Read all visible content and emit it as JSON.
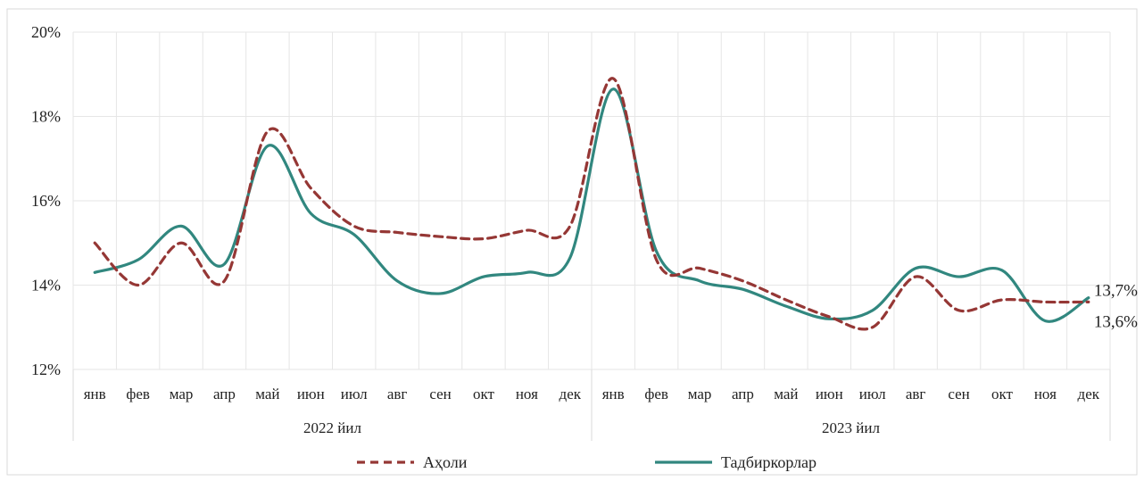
{
  "chart_data": {
    "type": "line",
    "y_ticks": [
      "12%",
      "14%",
      "16%",
      "18%",
      "20%"
    ],
    "ylim": [
      12,
      20
    ],
    "grid": true,
    "legend_position": "bottom",
    "groups": [
      {
        "label": "2022 йил",
        "categories": [
          "янв",
          "фев",
          "мар",
          "апр",
          "май",
          "июн",
          "июл",
          "авг",
          "сен",
          "окт",
          "ноя",
          "дек"
        ]
      },
      {
        "label": "2023 йил",
        "categories": [
          "янв",
          "фев",
          "мар",
          "апр",
          "май",
          "июн",
          "июл",
          "авг",
          "сен",
          "окт",
          "ноя",
          "дек"
        ]
      }
    ],
    "series": [
      {
        "name": "Аҳоли",
        "color": "#953735",
        "style": "dashed",
        "values": [
          15.0,
          14.0,
          15.0,
          14.1,
          17.65,
          16.3,
          15.4,
          15.25,
          15.15,
          15.1,
          15.3,
          15.4,
          18.9,
          14.6,
          14.4,
          14.1,
          13.65,
          13.25,
          13.0,
          14.2,
          13.4,
          13.65,
          13.6,
          13.6
        ],
        "end_label": "13,6%"
      },
      {
        "name": "Тадбиркорлар",
        "color": "#31877F",
        "style": "solid",
        "values": [
          14.3,
          14.6,
          15.4,
          14.5,
          17.3,
          15.7,
          15.2,
          14.1,
          13.8,
          14.2,
          14.3,
          14.65,
          18.65,
          14.8,
          14.1,
          13.9,
          13.5,
          13.2,
          13.4,
          14.4,
          14.2,
          14.35,
          13.15,
          13.7
        ],
        "end_label": "13,7%"
      }
    ]
  }
}
